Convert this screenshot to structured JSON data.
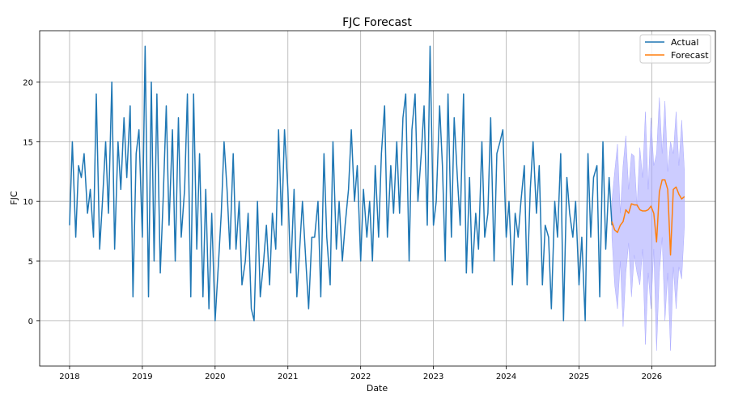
{
  "chart_data": {
    "type": "line",
    "title": "FJC Forecast",
    "xlabel": "Date",
    "ylabel": "FJC",
    "xlim": [
      "2017-08-04",
      "2026-11-16"
    ],
    "ylim": [
      -3.8,
      24.3
    ],
    "x_ticks": [
      "2018",
      "2019",
      "2020",
      "2021",
      "2022",
      "2023",
      "2024",
      "2025",
      "2026"
    ],
    "y_ticks": [
      0,
      5,
      10,
      15,
      20
    ],
    "grid": true,
    "legend": {
      "placement": "top-right",
      "entries": [
        "Actual",
        "Forecast"
      ]
    },
    "colors": {
      "actual": "#1f77b4",
      "forecast": "#ff7f0e",
      "interval": "#aaaaff"
    },
    "series": [
      {
        "name": "Actual",
        "dates": [
          "2018-01-01",
          "2018-01-15",
          "2018-02-01",
          "2018-02-15",
          "2018-03-01",
          "2018-03-15",
          "2018-04-01",
          "2018-04-15",
          "2018-05-01",
          "2018-05-15",
          "2018-06-01",
          "2018-06-15",
          "2018-07-01",
          "2018-07-15",
          "2018-08-01",
          "2018-08-15",
          "2018-09-01",
          "2018-09-15",
          "2018-10-01",
          "2018-10-15",
          "2018-11-01",
          "2018-11-15",
          "2018-12-01",
          "2018-12-15",
          "2019-01-01",
          "2019-01-15",
          "2019-02-01",
          "2019-02-15",
          "2019-03-01",
          "2019-03-15",
          "2019-04-01",
          "2019-04-15",
          "2019-05-01",
          "2019-05-15",
          "2019-06-01",
          "2019-06-15",
          "2019-07-01",
          "2019-07-15",
          "2019-08-01",
          "2019-08-15",
          "2019-09-01",
          "2019-09-15",
          "2019-10-01",
          "2019-10-15",
          "2019-11-01",
          "2019-11-15",
          "2019-12-01",
          "2019-12-15",
          "2020-01-01",
          "2020-01-15",
          "2020-02-01",
          "2020-02-15",
          "2020-03-01",
          "2020-03-15",
          "2020-04-01",
          "2020-04-15",
          "2020-05-01",
          "2020-05-15",
          "2020-06-01",
          "2020-06-15",
          "2020-07-01",
          "2020-07-15",
          "2020-08-01",
          "2020-08-15",
          "2020-09-01",
          "2020-09-15",
          "2020-10-01",
          "2020-10-15",
          "2020-11-01",
          "2020-11-15",
          "2020-12-01",
          "2020-12-15",
          "2021-01-01",
          "2021-01-15",
          "2021-02-01",
          "2021-02-15",
          "2021-03-01",
          "2021-03-15",
          "2021-04-01",
          "2021-04-15",
          "2021-05-01",
          "2021-05-15",
          "2021-06-01",
          "2021-06-15",
          "2021-07-01",
          "2021-07-15",
          "2021-08-01",
          "2021-08-15",
          "2021-09-01",
          "2021-09-15",
          "2021-10-01",
          "2021-10-15",
          "2021-11-01",
          "2021-11-15",
          "2021-12-01",
          "2021-12-15",
          "2022-01-01",
          "2022-01-15",
          "2022-02-01",
          "2022-02-15",
          "2022-03-01",
          "2022-03-15",
          "2022-04-01",
          "2022-04-15",
          "2022-05-01",
          "2022-05-15",
          "2022-06-01",
          "2022-06-15",
          "2022-07-01",
          "2022-07-15",
          "2022-08-01",
          "2022-08-15",
          "2022-09-01",
          "2022-09-15",
          "2022-10-01",
          "2022-10-15",
          "2022-11-01",
          "2022-11-15",
          "2022-12-01",
          "2022-12-15",
          "2023-01-01",
          "2023-01-15",
          "2023-02-01",
          "2023-02-15",
          "2023-03-01",
          "2023-03-15",
          "2023-04-01",
          "2023-04-15",
          "2023-05-01",
          "2023-05-15",
          "2023-06-01",
          "2023-06-15",
          "2023-07-01",
          "2023-07-15",
          "2023-08-01",
          "2023-08-15",
          "2023-09-01",
          "2023-09-15",
          "2023-10-01",
          "2023-10-15",
          "2023-11-01",
          "2023-11-15",
          "2023-12-01",
          "2023-12-15",
          "2024-01-01",
          "2024-01-15",
          "2024-02-01",
          "2024-02-15",
          "2024-03-01",
          "2024-03-15",
          "2024-04-01",
          "2024-04-15",
          "2024-05-01",
          "2024-05-15",
          "2024-06-01",
          "2024-06-15",
          "2024-07-01",
          "2024-07-15",
          "2024-08-01",
          "2024-08-15",
          "2024-09-01",
          "2024-09-15",
          "2024-10-01",
          "2024-10-15",
          "2024-11-01",
          "2024-11-15",
          "2024-12-01",
          "2024-12-15",
          "2025-01-01",
          "2025-01-15",
          "2025-02-01",
          "2025-02-15",
          "2025-03-01",
          "2025-03-15",
          "2025-04-01",
          "2025-04-15",
          "2025-05-01",
          "2025-05-15",
          "2025-06-01",
          "2025-06-15"
        ],
        "values": [
          8,
          15,
          7,
          13,
          12,
          14,
          9,
          11,
          7,
          19,
          6,
          10,
          15,
          9,
          20,
          6,
          15,
          11,
          17,
          12,
          18,
          2,
          14,
          16,
          7,
          23,
          2,
          20,
          5,
          19,
          4,
          10,
          18,
          8,
          16,
          5,
          17,
          7,
          11,
          19,
          2,
          19,
          6,
          14,
          2,
          11,
          1,
          9,
          0,
          4,
          9,
          15,
          11,
          6,
          14,
          6,
          10,
          3,
          5,
          9,
          1,
          0,
          10,
          2,
          5,
          8,
          3,
          9,
          6,
          16,
          8,
          16,
          11,
          4,
          11,
          2,
          6,
          10,
          5,
          1,
          7,
          7,
          10,
          2,
          14,
          7,
          3,
          15,
          6,
          10,
          5,
          8,
          11,
          16,
          10,
          13,
          5,
          11,
          7,
          10,
          5,
          13,
          7,
          14,
          18,
          7,
          13,
          9,
          15,
          9,
          17,
          19,
          5,
          16,
          19,
          10,
          14,
          18,
          8,
          23,
          8,
          10,
          18,
          13,
          5,
          19,
          7,
          17,
          12,
          8,
          19,
          4,
          12,
          4,
          9,
          6,
          15,
          7,
          9,
          17,
          5,
          14,
          15,
          16,
          7,
          10,
          3,
          9,
          7,
          10,
          13,
          3,
          11,
          15,
          9,
          13,
          3,
          8,
          7,
          1,
          10,
          7,
          14,
          0,
          12,
          9,
          7,
          10,
          3,
          7,
          0,
          14,
          7,
          12,
          13,
          2,
          15,
          6,
          12,
          8
        ]
      },
      {
        "name": "Forecast",
        "dates": [
          "2025-06-15",
          "2025-06-29",
          "2025-07-13",
          "2025-07-27",
          "2025-08-10",
          "2025-08-24",
          "2025-09-07",
          "2025-09-21",
          "2025-10-05",
          "2025-10-19",
          "2025-11-02",
          "2025-11-16",
          "2025-11-30",
          "2025-12-14",
          "2025-12-28",
          "2026-01-11",
          "2026-01-25",
          "2026-02-08",
          "2026-02-22",
          "2026-03-08",
          "2026-03-22",
          "2026-04-05",
          "2026-04-19",
          "2026-05-03",
          "2026-05-17",
          "2026-05-31",
          "2026-06-14"
        ],
        "values": [
          8.3,
          7.6,
          7.4,
          8.0,
          8.3,
          9.3,
          9.0,
          9.8,
          9.7,
          9.7,
          9.3,
          9.2,
          9.2,
          9.3,
          9.6,
          9.0,
          6.6,
          10.8,
          11.8,
          11.8,
          11.0,
          5.5,
          11.0,
          11.2,
          10.6,
          10.2,
          10.4
        ],
        "upper": [
          10,
          12.5,
          14.8,
          9,
          13,
          15.5,
          11,
          14,
          13.8,
          9.5,
          14.5,
          12,
          17.5,
          11,
          17,
          13,
          14,
          18.7,
          14,
          18.4,
          12.5,
          15,
          14,
          17.5,
          13,
          16.8,
          12.5
        ],
        "lower": [
          7,
          3,
          1,
          5,
          -0.5,
          4,
          6.5,
          2,
          5.5,
          4,
          3,
          6,
          -2,
          4,
          1,
          6,
          -2.5,
          4,
          7,
          0,
          4,
          -2.5,
          4.5,
          1,
          4.5,
          3.5,
          8
        ]
      }
    ]
  }
}
